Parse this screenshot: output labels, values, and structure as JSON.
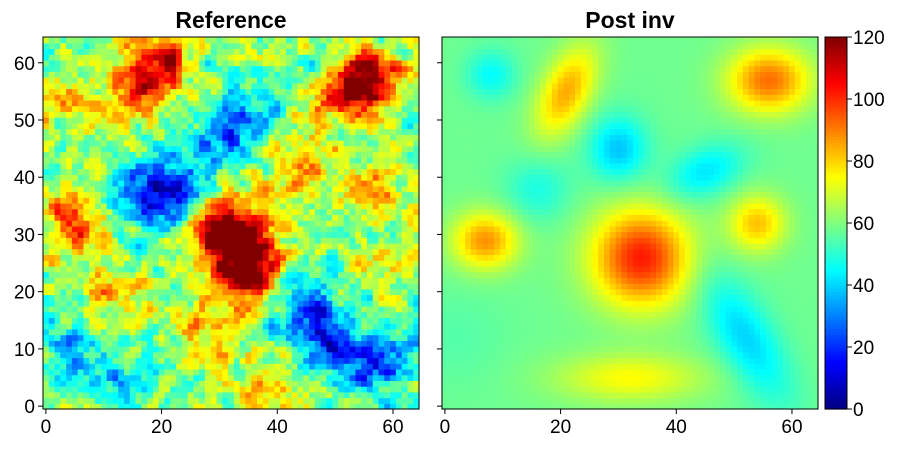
{
  "chart_data": [
    {
      "type": "heatmap",
      "title": "Reference",
      "xlabel": "",
      "ylabel": "",
      "xlim": [
        0,
        64
      ],
      "ylim": [
        0,
        64
      ],
      "xticks": [
        "0",
        "20",
        "40",
        "60"
      ],
      "yticks": [
        "0",
        "10",
        "20",
        "30",
        "40",
        "50",
        "60"
      ],
      "grid": false,
      "colormap": "jet",
      "grid_size": [
        65,
        65
      ],
      "base_value": 60,
      "texture": "blocky-noisy",
      "features": [
        {
          "x": 17,
          "y": 57,
          "value": 105
        },
        {
          "x": 22,
          "y": 63,
          "value": 85
        },
        {
          "x": 53,
          "y": 55,
          "value": 110
        },
        {
          "x": 57,
          "y": 58,
          "value": 95
        },
        {
          "x": 5,
          "y": 32,
          "value": 100
        },
        {
          "x": 33,
          "y": 28,
          "value": 115
        },
        {
          "x": 36,
          "y": 23,
          "value": 105
        },
        {
          "x": 30,
          "y": 32,
          "value": 100
        },
        {
          "x": 17,
          "y": 37,
          "value": 15
        },
        {
          "x": 23,
          "y": 37,
          "value": 30
        },
        {
          "x": 34,
          "y": 50,
          "value": 30
        },
        {
          "x": 29,
          "y": 45,
          "value": 40
        },
        {
          "x": 57,
          "y": 8,
          "value": 20
        },
        {
          "x": 48,
          "y": 12,
          "value": 25
        },
        {
          "x": 44,
          "y": 18,
          "value": 35
        },
        {
          "x": 5,
          "y": 10,
          "value": 40
        },
        {
          "x": 14,
          "y": 5,
          "value": 40
        },
        {
          "x": 28,
          "y": 14,
          "value": 85
        },
        {
          "x": 38,
          "y": 3,
          "value": 80
        },
        {
          "x": 43,
          "y": 43,
          "value": 80
        },
        {
          "x": 2,
          "y": 54,
          "value": 75
        },
        {
          "x": 12,
          "y": 19,
          "value": 80
        },
        {
          "x": 56,
          "y": 37,
          "value": 82
        },
        {
          "x": 10,
          "y": 47,
          "value": 70
        },
        {
          "x": 60,
          "y": 25,
          "value": 72
        }
      ]
    },
    {
      "type": "heatmap",
      "title": "Post inv",
      "xlabel": "",
      "ylabel": "",
      "xlim": [
        0,
        64
      ],
      "ylim": [
        0,
        64
      ],
      "xticks": [
        "0",
        "20",
        "40",
        "60"
      ],
      "yticks": [
        "0",
        "10",
        "20",
        "30",
        "40",
        "50",
        "60"
      ],
      "grid": false,
      "colormap": "jet",
      "grid_size": [
        65,
        65
      ],
      "base_value": 58,
      "texture": "smooth",
      "features": [
        {
          "x": 8,
          "y": 58,
          "value": 45,
          "sx": 3,
          "sy": 3
        },
        {
          "x": 21,
          "y": 55,
          "value": 85,
          "sx": 3,
          "sy": 6,
          "angle": -25
        },
        {
          "x": 56,
          "y": 57,
          "value": 92,
          "sx": 5,
          "sy": 4
        },
        {
          "x": 30,
          "y": 45,
          "value": 38,
          "sx": 3.5,
          "sy": 4
        },
        {
          "x": 45,
          "y": 41,
          "value": 42,
          "sx": 5,
          "sy": 3,
          "angle": 25
        },
        {
          "x": 16,
          "y": 38,
          "value": 48,
          "sx": 4,
          "sy": 4
        },
        {
          "x": 54,
          "y": 32,
          "value": 82,
          "sx": 3.5,
          "sy": 3.5
        },
        {
          "x": 7,
          "y": 29,
          "value": 88,
          "sx": 4,
          "sy": 3.5
        },
        {
          "x": 34,
          "y": 26,
          "value": 102,
          "sx": 6,
          "sy": 6
        },
        {
          "x": 52,
          "y": 12,
          "value": 40,
          "sx": 3.5,
          "sy": 9,
          "angle": 30
        },
        {
          "x": 32,
          "y": 5,
          "value": 75,
          "sx": 9,
          "sy": 3
        },
        {
          "x": 2,
          "y": 12,
          "value": 55,
          "sx": 6,
          "sy": 6
        }
      ]
    }
  ],
  "colorbar": {
    "colormap": "jet",
    "range": [
      0,
      120
    ],
    "ticks": [
      "0",
      "20",
      "40",
      "60",
      "80",
      "100",
      "120"
    ]
  }
}
